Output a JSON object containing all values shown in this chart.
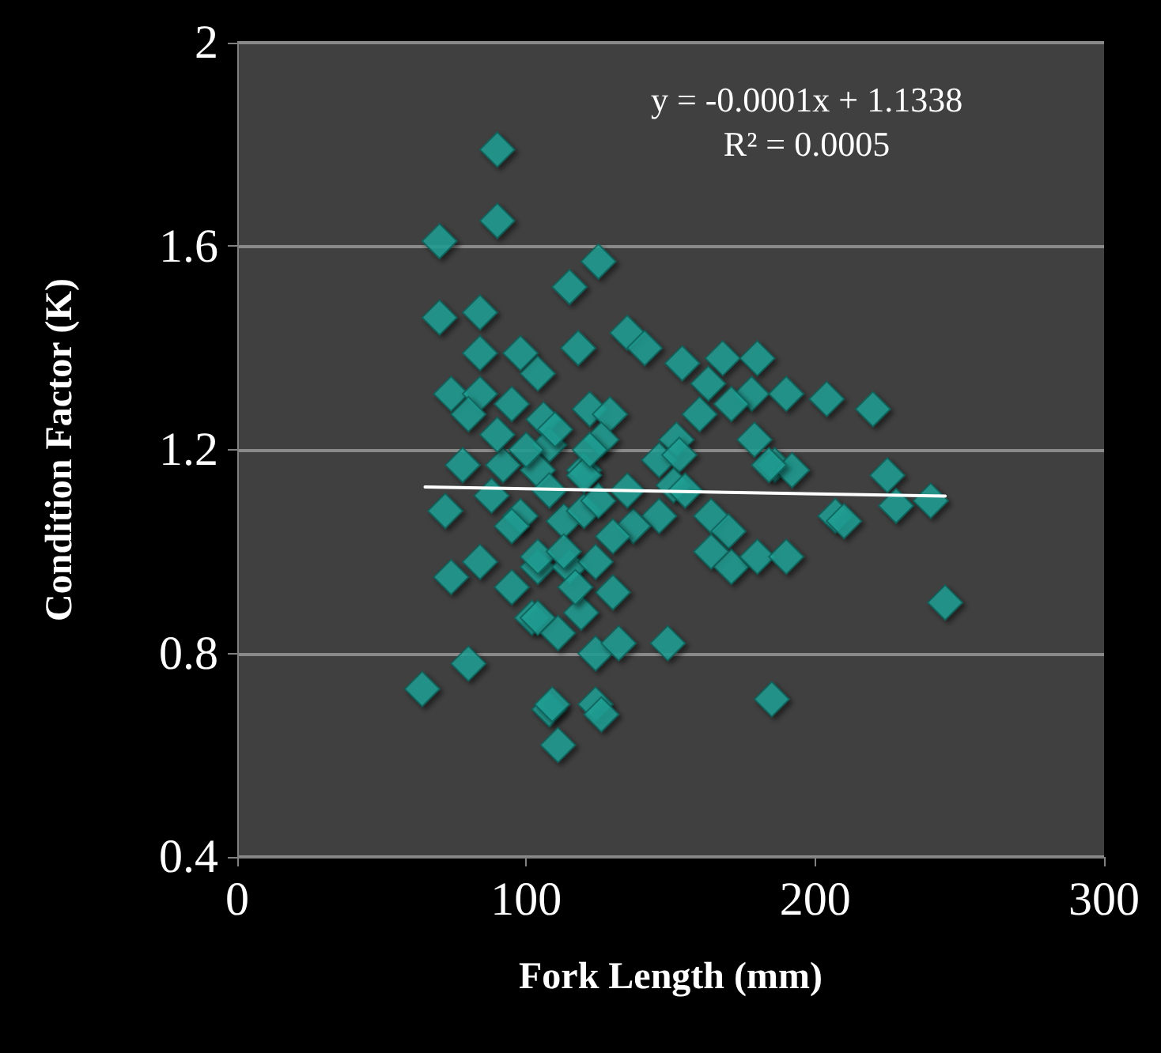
{
  "chart_data": {
    "type": "scatter",
    "xlabel": "Fork Length (mm)",
    "ylabel": "Condition Factor (K)",
    "xlim": [
      0,
      300
    ],
    "xticks": [
      0,
      100,
      200,
      300
    ],
    "ylim": [
      0.4,
      2
    ],
    "yticks": [
      0.4,
      0.8,
      1.2,
      1.6,
      2
    ],
    "grid": "y",
    "marker": "diamond",
    "annotations": [
      "y = -0.0001x + 1.1338",
      "R² = 0.0005"
    ],
    "series": [
      {
        "color": "#1fa397",
        "x": [
          70,
          90,
          70,
          84,
          84,
          98,
          74,
          84,
          95,
          104,
          80,
          106,
          78,
          92,
          108,
          90,
          72,
          74,
          84,
          95,
          102,
          80,
          64,
          108,
          88,
          98,
          104,
          125,
          115,
          118,
          135,
          141,
          154,
          168,
          180,
          163,
          178,
          190,
          204,
          160,
          171,
          122,
          129,
          152,
          179,
          186,
          192,
          126,
          104,
          120,
          146,
          153,
          151,
          155,
          184,
          207,
          146,
          137,
          164,
          170,
          164,
          171,
          180,
          190,
          113,
          120,
          130,
          104,
          115,
          130,
          104,
          111,
          124,
          132,
          149,
          109,
          124,
          126,
          111,
          185,
          120,
          108,
          124,
          119,
          220,
          225,
          228,
          240,
          210,
          245,
          90,
          100,
          110,
          95,
          113,
          125,
          117,
          122,
          135
        ],
        "values": [
          1.61,
          1.65,
          1.46,
          1.47,
          1.39,
          1.39,
          1.31,
          1.31,
          1.29,
          1.35,
          1.27,
          1.26,
          1.17,
          1.17,
          1.21,
          1.79,
          1.08,
          0.95,
          0.98,
          0.93,
          0.87,
          0.78,
          0.73,
          0.69,
          1.11,
          1.07,
          0.97,
          1.57,
          1.52,
          1.4,
          1.43,
          1.4,
          1.37,
          1.38,
          1.38,
          1.33,
          1.31,
          1.31,
          1.3,
          1.27,
          1.29,
          1.28,
          1.27,
          1.22,
          1.22,
          1.17,
          1.16,
          1.22,
          1.16,
          1.16,
          1.18,
          1.19,
          1.13,
          1.12,
          1.17,
          1.07,
          1.07,
          1.05,
          1.07,
          1.04,
          1.0,
          0.97,
          0.99,
          0.99,
          1.06,
          1.08,
          1.03,
          0.99,
          0.97,
          0.92,
          0.87,
          0.84,
          0.8,
          0.82,
          0.82,
          0.7,
          0.7,
          0.68,
          0.62,
          0.71,
          1.15,
          1.12,
          0.98,
          0.88,
          1.28,
          1.15,
          1.09,
          1.1,
          1.06,
          0.9,
          1.23,
          1.2,
          1.24,
          1.05,
          1.0,
          1.1,
          0.93,
          1.2,
          1.12
        ]
      },
      {
        "type": "line",
        "color": "#ffffff",
        "marker": "none",
        "x": [
          65,
          245
        ],
        "values": [
          1.127,
          1.109
        ]
      }
    ]
  }
}
